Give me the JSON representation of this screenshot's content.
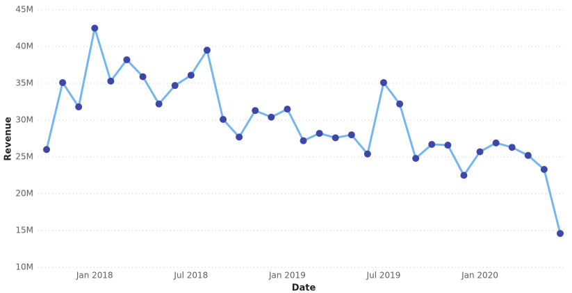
{
  "chart_data": {
    "type": "line",
    "x_label": "Date",
    "y_label": "Revenue",
    "x": [
      "2017-10",
      "2017-11",
      "2017-12",
      "2018-01",
      "2018-02",
      "2018-03",
      "2018-04",
      "2018-05",
      "2018-06",
      "2018-07",
      "2018-08",
      "2018-09",
      "2018-10",
      "2018-11",
      "2018-12",
      "2019-01",
      "2019-02",
      "2019-03",
      "2019-04",
      "2019-05",
      "2019-06",
      "2019-07",
      "2019-08",
      "2019-09",
      "2019-10",
      "2019-11",
      "2019-12",
      "2020-01",
      "2020-02",
      "2020-03",
      "2020-04",
      "2020-05",
      "2020-06"
    ],
    "series": [
      {
        "name": "Revenue",
        "color": "#73b6f0",
        "marker_color": "#3c47a6",
        "values": [
          26.0,
          35.1,
          31.8,
          42.5,
          35.3,
          38.2,
          35.9,
          32.2,
          34.7,
          36.1,
          39.5,
          30.1,
          27.7,
          31.3,
          30.4,
          31.5,
          27.2,
          28.2,
          27.6,
          28.0,
          25.4,
          35.1,
          32.2,
          24.8,
          26.7,
          26.6,
          22.5,
          25.7,
          26.9,
          26.3,
          25.2,
          23.3,
          14.6
        ]
      }
    ],
    "xlim": [
      "2017-10",
      "2020-06"
    ],
    "xticks": [
      {
        "value": "2018-01",
        "label": "Jan 2018"
      },
      {
        "value": "2018-07",
        "label": "Jul 2018"
      },
      {
        "value": "2019-01",
        "label": "Jan 2019"
      },
      {
        "value": "2019-07",
        "label": "Jul 2019"
      },
      {
        "value": "2020-01",
        "label": "Jan 2020"
      }
    ],
    "ylim": [
      10,
      45
    ],
    "yticks": [
      {
        "value": 10,
        "label": "10M"
      },
      {
        "value": 15,
        "label": "15M"
      },
      {
        "value": 20,
        "label": "20M"
      },
      {
        "value": 25,
        "label": "25M"
      },
      {
        "value": 30,
        "label": "30M"
      },
      {
        "value": 35,
        "label": "35M"
      },
      {
        "value": 40,
        "label": "40M"
      },
      {
        "value": 45,
        "label": "45M"
      }
    ],
    "grid": true
  }
}
